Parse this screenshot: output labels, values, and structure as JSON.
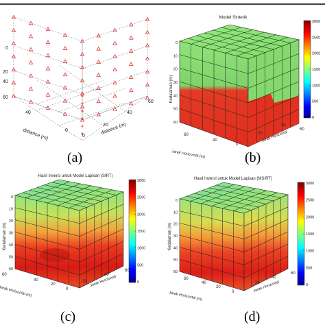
{
  "panels": [
    {
      "caption": "(a)",
      "type": "scatter",
      "title": "",
      "xlabel": "distance (m)",
      "ylabel": "distance (m)",
      "zlabel": "",
      "z_ticks": [
        "0",
        "20",
        "40",
        "60"
      ],
      "x_ticks": [
        "0",
        "40"
      ],
      "y_ticks": [
        "0",
        "20",
        "40",
        "60"
      ],
      "marker": "triangle",
      "marker_color": "#e03030"
    },
    {
      "caption": "(b)",
      "type": "heatmap",
      "title": "Model Sintetik",
      "xlabel": "Jarak Horizontal (m)",
      "ylabel": "Jarak Horizontal",
      "zlabel": "Kedalaman (m)",
      "z_ticks": [
        "0",
        "10",
        "20",
        "30",
        "40",
        "50",
        "60"
      ],
      "x_ticks": [
        "60",
        "40",
        "20",
        "0"
      ],
      "y_ticks": [
        "0",
        "20",
        "40",
        "60"
      ],
      "colorbar_ticks": [
        "3000",
        "2500",
        "2000",
        "1500",
        "1000",
        "500",
        "0"
      ],
      "colorbar_range": [
        0,
        3000
      ],
      "interface_depth": 35
    },
    {
      "caption": "(c)",
      "type": "heatmap",
      "title": "Hasil Inversi untuk Model Lapisan (SIRT)",
      "xlabel": "Jarak Horizontal (m)",
      "ylabel": "Jarak Horizontal",
      "zlabel": "Kedalaman (m)",
      "z_ticks": [
        "0",
        "10",
        "20",
        "30",
        "40",
        "50",
        "60"
      ],
      "x_ticks": [
        "60",
        "40",
        "20",
        "0"
      ],
      "y_ticks": [
        "0",
        "20",
        "40",
        "60"
      ],
      "colorbar_ticks": [
        "3000",
        "2500",
        "2000",
        "1500",
        "1000",
        "500",
        "0"
      ],
      "colorbar_range": [
        0,
        3000
      ]
    },
    {
      "caption": "(d)",
      "type": "heatmap",
      "title": "Hasil Inversi untuk Model Lapisan (MSIRT)",
      "xlabel": "Jarak Horizontal (m)",
      "ylabel": "Jarak Horizontal",
      "zlabel": "Kedalaman (m)",
      "z_ticks": [
        "0",
        "10",
        "20",
        "30",
        "40",
        "50",
        "60"
      ],
      "x_ticks": [
        "60",
        "40",
        "20",
        "0"
      ],
      "y_ticks": [
        "0",
        "20",
        "40",
        "60"
      ],
      "colorbar_ticks": [
        "3000",
        "2500",
        "2000",
        "1500",
        "1000",
        "500",
        "0"
      ],
      "colorbar_range": [
        0,
        3000
      ]
    }
  ],
  "chart_data": [
    {
      "type": "scatter",
      "title": "",
      "xlabel": "distance (m)",
      "ylabel": "distance (m)",
      "x": [
        0,
        20,
        40,
        60
      ],
      "y": [
        0,
        20,
        40,
        60
      ],
      "z": [
        0,
        10,
        20,
        30,
        40,
        50,
        60
      ],
      "description_points": "sensors on cube faces"
    },
    {
      "type": "heatmap",
      "title": "Model Sintetik",
      "depth_m": [
        0,
        10,
        20,
        30,
        40,
        50,
        60
      ],
      "velocity": [
        2200,
        2200,
        2200,
        2600,
        2900,
        2900,
        2900
      ],
      "zlim": [
        0,
        3000
      ]
    },
    {
      "type": "heatmap",
      "title": "Hasil Inversi untuk Model Lapisan (SIRT)",
      "depth_m": [
        0,
        10,
        20,
        30,
        40,
        50,
        60
      ],
      "velocity": [
        1900,
        2100,
        2300,
        2600,
        2800,
        2850,
        2700
      ],
      "zlim": [
        0,
        3000
      ]
    },
    {
      "type": "heatmap",
      "title": "Hasil Inversi untuk Model Lapisan (MSIRT)",
      "depth_m": [
        0,
        10,
        20,
        30,
        40,
        50,
        60
      ],
      "velocity": [
        2000,
        2150,
        2350,
        2600,
        2800,
        2850,
        2750
      ],
      "zlim": [
        0,
        3000
      ]
    }
  ]
}
